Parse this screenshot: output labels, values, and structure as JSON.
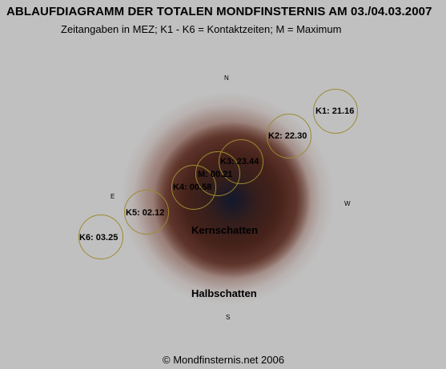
{
  "title": "ABLAUFDIAGRAMM DER TOTALEN MONDFINSTERNIS AM 03./04.03.2007",
  "subtitle": "Zeitangaben in MEZ; K1 - K6 = Kontaktzeiten; M = Maximum",
  "directions": {
    "north": "N",
    "south": "S",
    "east": "E",
    "west": "W"
  },
  "zones": {
    "umbra": "Kernschatten",
    "penumbra": "Halbschatten"
  },
  "contacts": [
    {
      "label": "K1: 21.16"
    },
    {
      "label": "K2: 22.30"
    },
    {
      "label": "K3: 23.44"
    },
    {
      "label": "M: 00.21"
    },
    {
      "label": "K4: 00.58"
    },
    {
      "label": "K5: 02.12"
    },
    {
      "label": "K6: 03.25"
    }
  ],
  "copyright": "© Mondfinsternis.net 2006",
  "colors": {
    "background": "#c0c0c0",
    "circle_outline": "#9c8a30",
    "umbra_core": "#1e1a26",
    "umbra_outer": "#46221a",
    "penumbra": "#7a4e42"
  }
}
